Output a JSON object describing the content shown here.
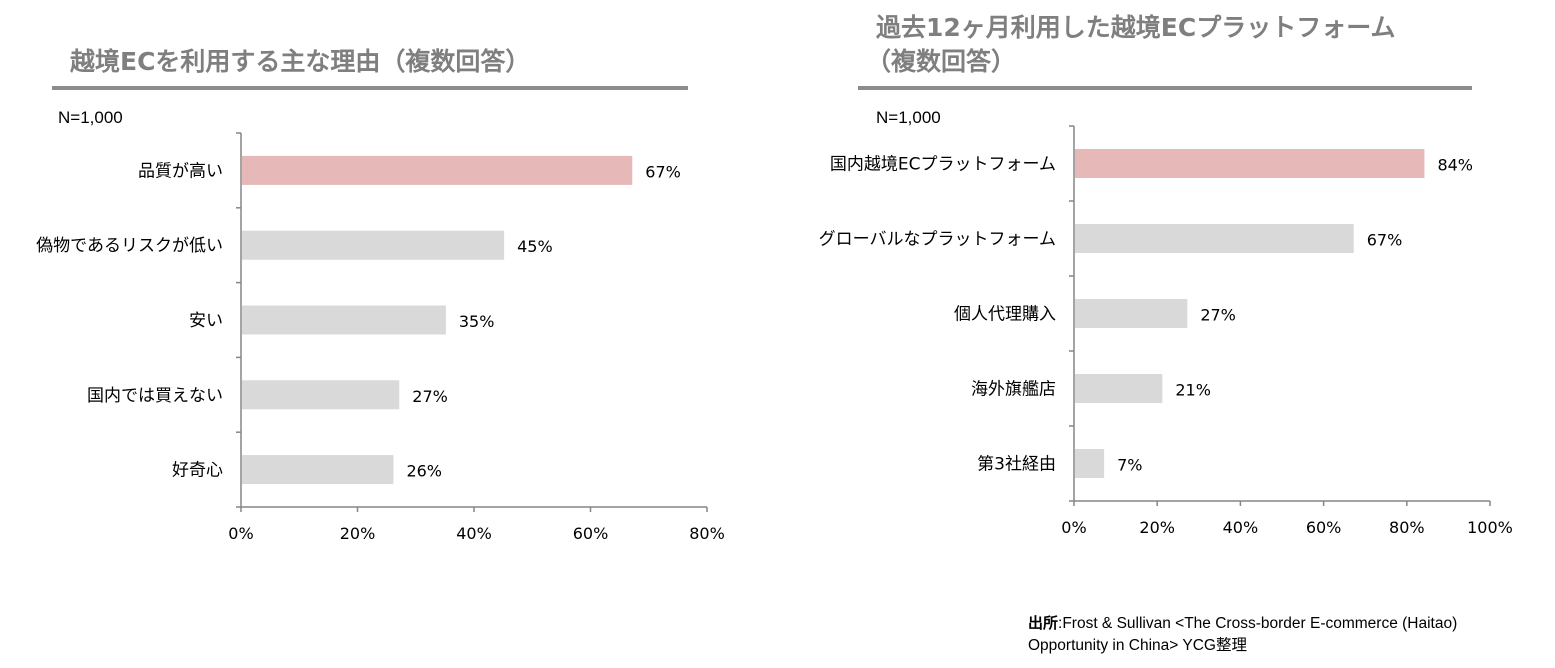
{
  "left_panel": {
    "title": "越境ECを利用する主な理由（複数回答）",
    "sample_size": "N=1,000"
  },
  "right_panel": {
    "title_line1": "過去12ヶ月利用した越境ECプラットフォーム",
    "title_line2": "（複数回答）",
    "sample_size": "N=1,000"
  },
  "source": {
    "prefix": "出所",
    "text": ":Frost & Sullivan <The Cross-border E-commerce (Haitao) Opportunity in China>  YCG整理"
  },
  "colors": {
    "highlight_bar": "#e6b8b7",
    "default_bar": "#d9d9d9",
    "title_text": "#7f7f7f",
    "rule": "#8c8c8c",
    "axis": "#868686"
  },
  "chart_data": [
    {
      "type": "bar",
      "orientation": "horizontal",
      "categories": [
        "品質が高い",
        "偽物であるリスクが低い",
        "安い",
        "国内では買えない",
        "好奇心"
      ],
      "values": [
        67,
        45,
        35,
        27,
        26
      ],
      "data_labels": [
        "67%",
        "45%",
        "35%",
        "27%",
        "26%"
      ],
      "highlight_index": 0,
      "xlim": [
        0,
        80
      ],
      "xticks": [
        "0%",
        "20%",
        "40%",
        "60%",
        "80%"
      ],
      "grid": false,
      "legend": "none"
    },
    {
      "type": "bar",
      "orientation": "horizontal",
      "categories": [
        "国内越境ECプラットフォーム",
        "グローバルなプラットフォーム",
        "個人代理購入",
        "海外旗艦店",
        "第3社経由"
      ],
      "values": [
        84,
        67,
        27,
        21,
        7
      ],
      "data_labels": [
        "84%",
        "67%",
        "27%",
        "21%",
        "7%"
      ],
      "highlight_index": 0,
      "xlim": [
        0,
        100
      ],
      "xticks": [
        "0%",
        "20%",
        "40%",
        "60%",
        "80%",
        "100%"
      ],
      "grid": false,
      "legend": "none"
    }
  ]
}
